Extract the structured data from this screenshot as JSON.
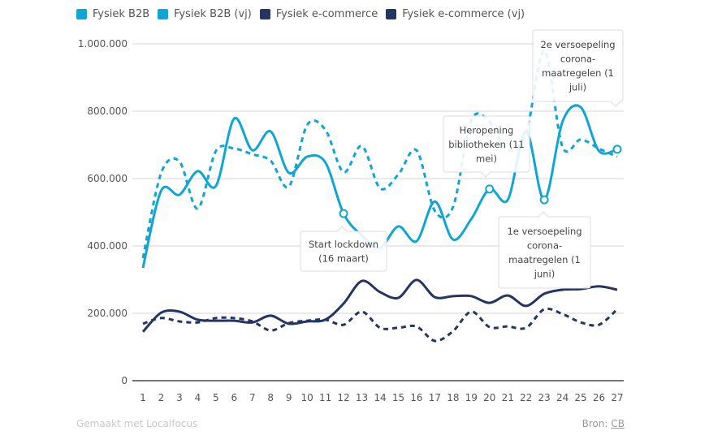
{
  "legend": [
    {
      "label": "Fysiek B2B",
      "color": "#10a6d3"
    },
    {
      "label": "Fysiek B2B (vj)",
      "color": "#10a6d3"
    },
    {
      "label": "Fysiek e-commerce",
      "color": "#253561"
    },
    {
      "label": "Fysiek e-commerce (vj)",
      "color": "#253561"
    }
  ],
  "footer": {
    "credit": "Gemaakt met Localfocus",
    "source_label": "Bron:",
    "source_link": "CB"
  },
  "chart_data": {
    "type": "line",
    "title": "",
    "xlabel": "",
    "ylabel": "",
    "x": [
      1,
      2,
      3,
      4,
      5,
      6,
      7,
      8,
      9,
      10,
      11,
      12,
      13,
      14,
      15,
      16,
      17,
      18,
      19,
      20,
      21,
      22,
      23,
      24,
      25,
      26,
      27
    ],
    "ylim": [
      0,
      1000000
    ],
    "yticks": [
      0,
      200000,
      400000,
      600000,
      800000,
      1000000
    ],
    "ytick_labels": [
      "0",
      "200.000",
      "400.000",
      "600.000",
      "800.000",
      "1.000.000"
    ],
    "grid": true,
    "legend_position": "top-left",
    "series": [
      {
        "name": "Fysiek B2B",
        "color": "#10a6d3",
        "dashed": false,
        "values": [
          335000,
          564000,
          552000,
          622000,
          578000,
          778000,
          684000,
          740000,
          617000,
          665000,
          648000,
          496000,
          431000,
          395000,
          458000,
          414000,
          532000,
          419000,
          480000,
          569000,
          537000,
          740000,
          537000,
          769000,
          812000,
          682000,
          687000
        ],
        "markers": [
          12,
          20,
          23,
          27
        ]
      },
      {
        "name": "Fysiek B2B (vj)",
        "color": "#10a6d3",
        "dashed": true,
        "values": [
          364000,
          617000,
          651000,
          511000,
          682000,
          689000,
          672000,
          653000,
          576000,
          759000,
          745000,
          619000,
          697000,
          571000,
          612000,
          684000,
          504000,
          516000,
          773000,
          769000,
          684000,
          733000,
          980000,
          694000,
          716000,
          689000,
          665000
        ]
      },
      {
        "name": "Fysiek e-commerce",
        "color": "#253561",
        "dashed": false,
        "values": [
          145000,
          202000,
          205000,
          181000,
          178000,
          178000,
          173000,
          193000,
          169000,
          176000,
          181000,
          229000,
          296000,
          263000,
          246000,
          299000,
          248000,
          251000,
          251000,
          231000,
          253000,
          222000,
          258000,
          270000,
          272000,
          280000,
          270000
        ]
      },
      {
        "name": "Fysiek e-commerce (vj)",
        "color": "#253561",
        "dashed": true,
        "values": [
          169000,
          186000,
          176000,
          173000,
          186000,
          186000,
          176000,
          149000,
          171000,
          178000,
          181000,
          166000,
          205000,
          157000,
          157000,
          161000,
          118000,
          147000,
          205000,
          159000,
          161000,
          157000,
          212000,
          198000,
          173000,
          166000,
          212000
        ]
      }
    ],
    "annotations": [
      {
        "x": 12,
        "series": "Fysiek B2B",
        "lines": [
          "Start lockdown",
          "(16 maart)"
        ],
        "placement": "below"
      },
      {
        "x": 20,
        "series": "Fysiek B2B",
        "lines": [
          "Heropening",
          "bibliotheken (11",
          "mei)"
        ],
        "placement": "above"
      },
      {
        "x": 23,
        "series": "Fysiek B2B",
        "lines": [
          "1e versoepeling",
          "corona-",
          "maatregelen (1",
          "juni)"
        ],
        "placement": "below"
      },
      {
        "x": 27,
        "series": "Fysiek B2B",
        "lines": [
          "2e versoepeling",
          "corona-",
          "maatregelen (1",
          "juli)"
        ],
        "placement": "above-left"
      }
    ]
  }
}
